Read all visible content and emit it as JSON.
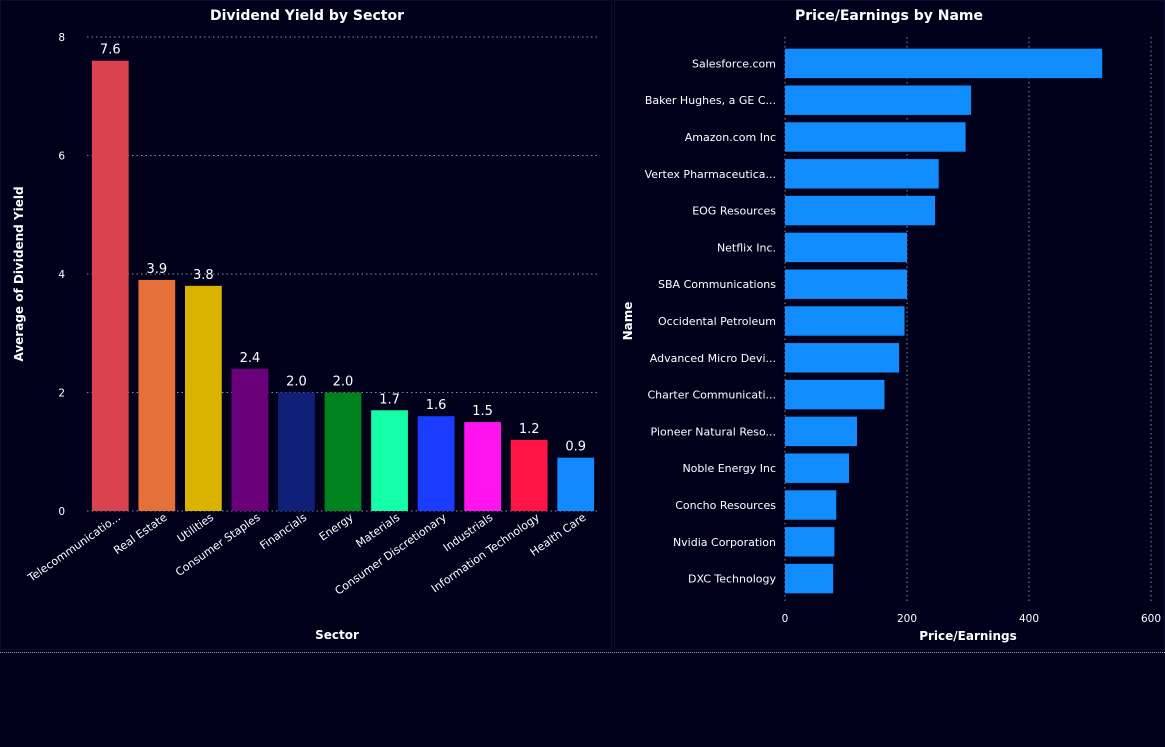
{
  "chart_data": [
    {
      "type": "bar",
      "title": "Dividend Yield by Sector",
      "xlabel": "Sector",
      "ylabel": "Average of Dividend Yield",
      "ylim": [
        0,
        8
      ],
      "yticks": [
        "0",
        "2",
        "4",
        "6",
        "8"
      ],
      "grid": true,
      "categories": [
        "Telecommunicatio...",
        "Real Estate",
        "Utilities",
        "Consumer Staples",
        "Financials",
        "Energy",
        "Materials",
        "Consumer Discretionary",
        "Industrials",
        "Information Technology",
        "Health Care"
      ],
      "values": [
        7.6,
        3.9,
        3.8,
        2.4,
        2.0,
        2.0,
        1.7,
        1.6,
        1.5,
        1.2,
        0.9
      ],
      "data_labels": [
        "7.6",
        "3.9",
        "3.8",
        "2.4",
        "2.0",
        "2.0",
        "1.7",
        "1.6",
        "1.5",
        "1.2",
        "0.9"
      ],
      "colors": [
        "#d9434f",
        "#e6703a",
        "#d9b300",
        "#6b007b",
        "#101f78",
        "#00821e",
        "#14ffa8",
        "#1a3cff",
        "#ff14f0",
        "#ff1447",
        "#138aff"
      ]
    },
    {
      "type": "bar",
      "orientation": "horizontal",
      "title": "Price/Earnings by Name",
      "xlabel": "Price/Earnings",
      "ylabel": "Name",
      "xlim": [
        0,
        600
      ],
      "xticks": [
        "0",
        "200",
        "400",
        "600"
      ],
      "grid": true,
      "categories": [
        "Salesforce.com",
        "Baker Hughes, a GE C...",
        "Amazon.com Inc",
        "Vertex Pharmaceutica...",
        "EOG Resources",
        "Netflix Inc.",
        "SBA Communications",
        "Occidental Petroleum",
        "Advanced Micro Devi...",
        "Charter Communicati...",
        "Pioneer Natural Reso...",
        "Noble Energy Inc",
        "Concho Resources",
        "Nvidia Corporation",
        "DXC Technology"
      ],
      "values": [
        520,
        305,
        296,
        252,
        246,
        200,
        200,
        196,
        187,
        163,
        118,
        105,
        84,
        81,
        79
      ],
      "color": "#118dff"
    }
  ]
}
